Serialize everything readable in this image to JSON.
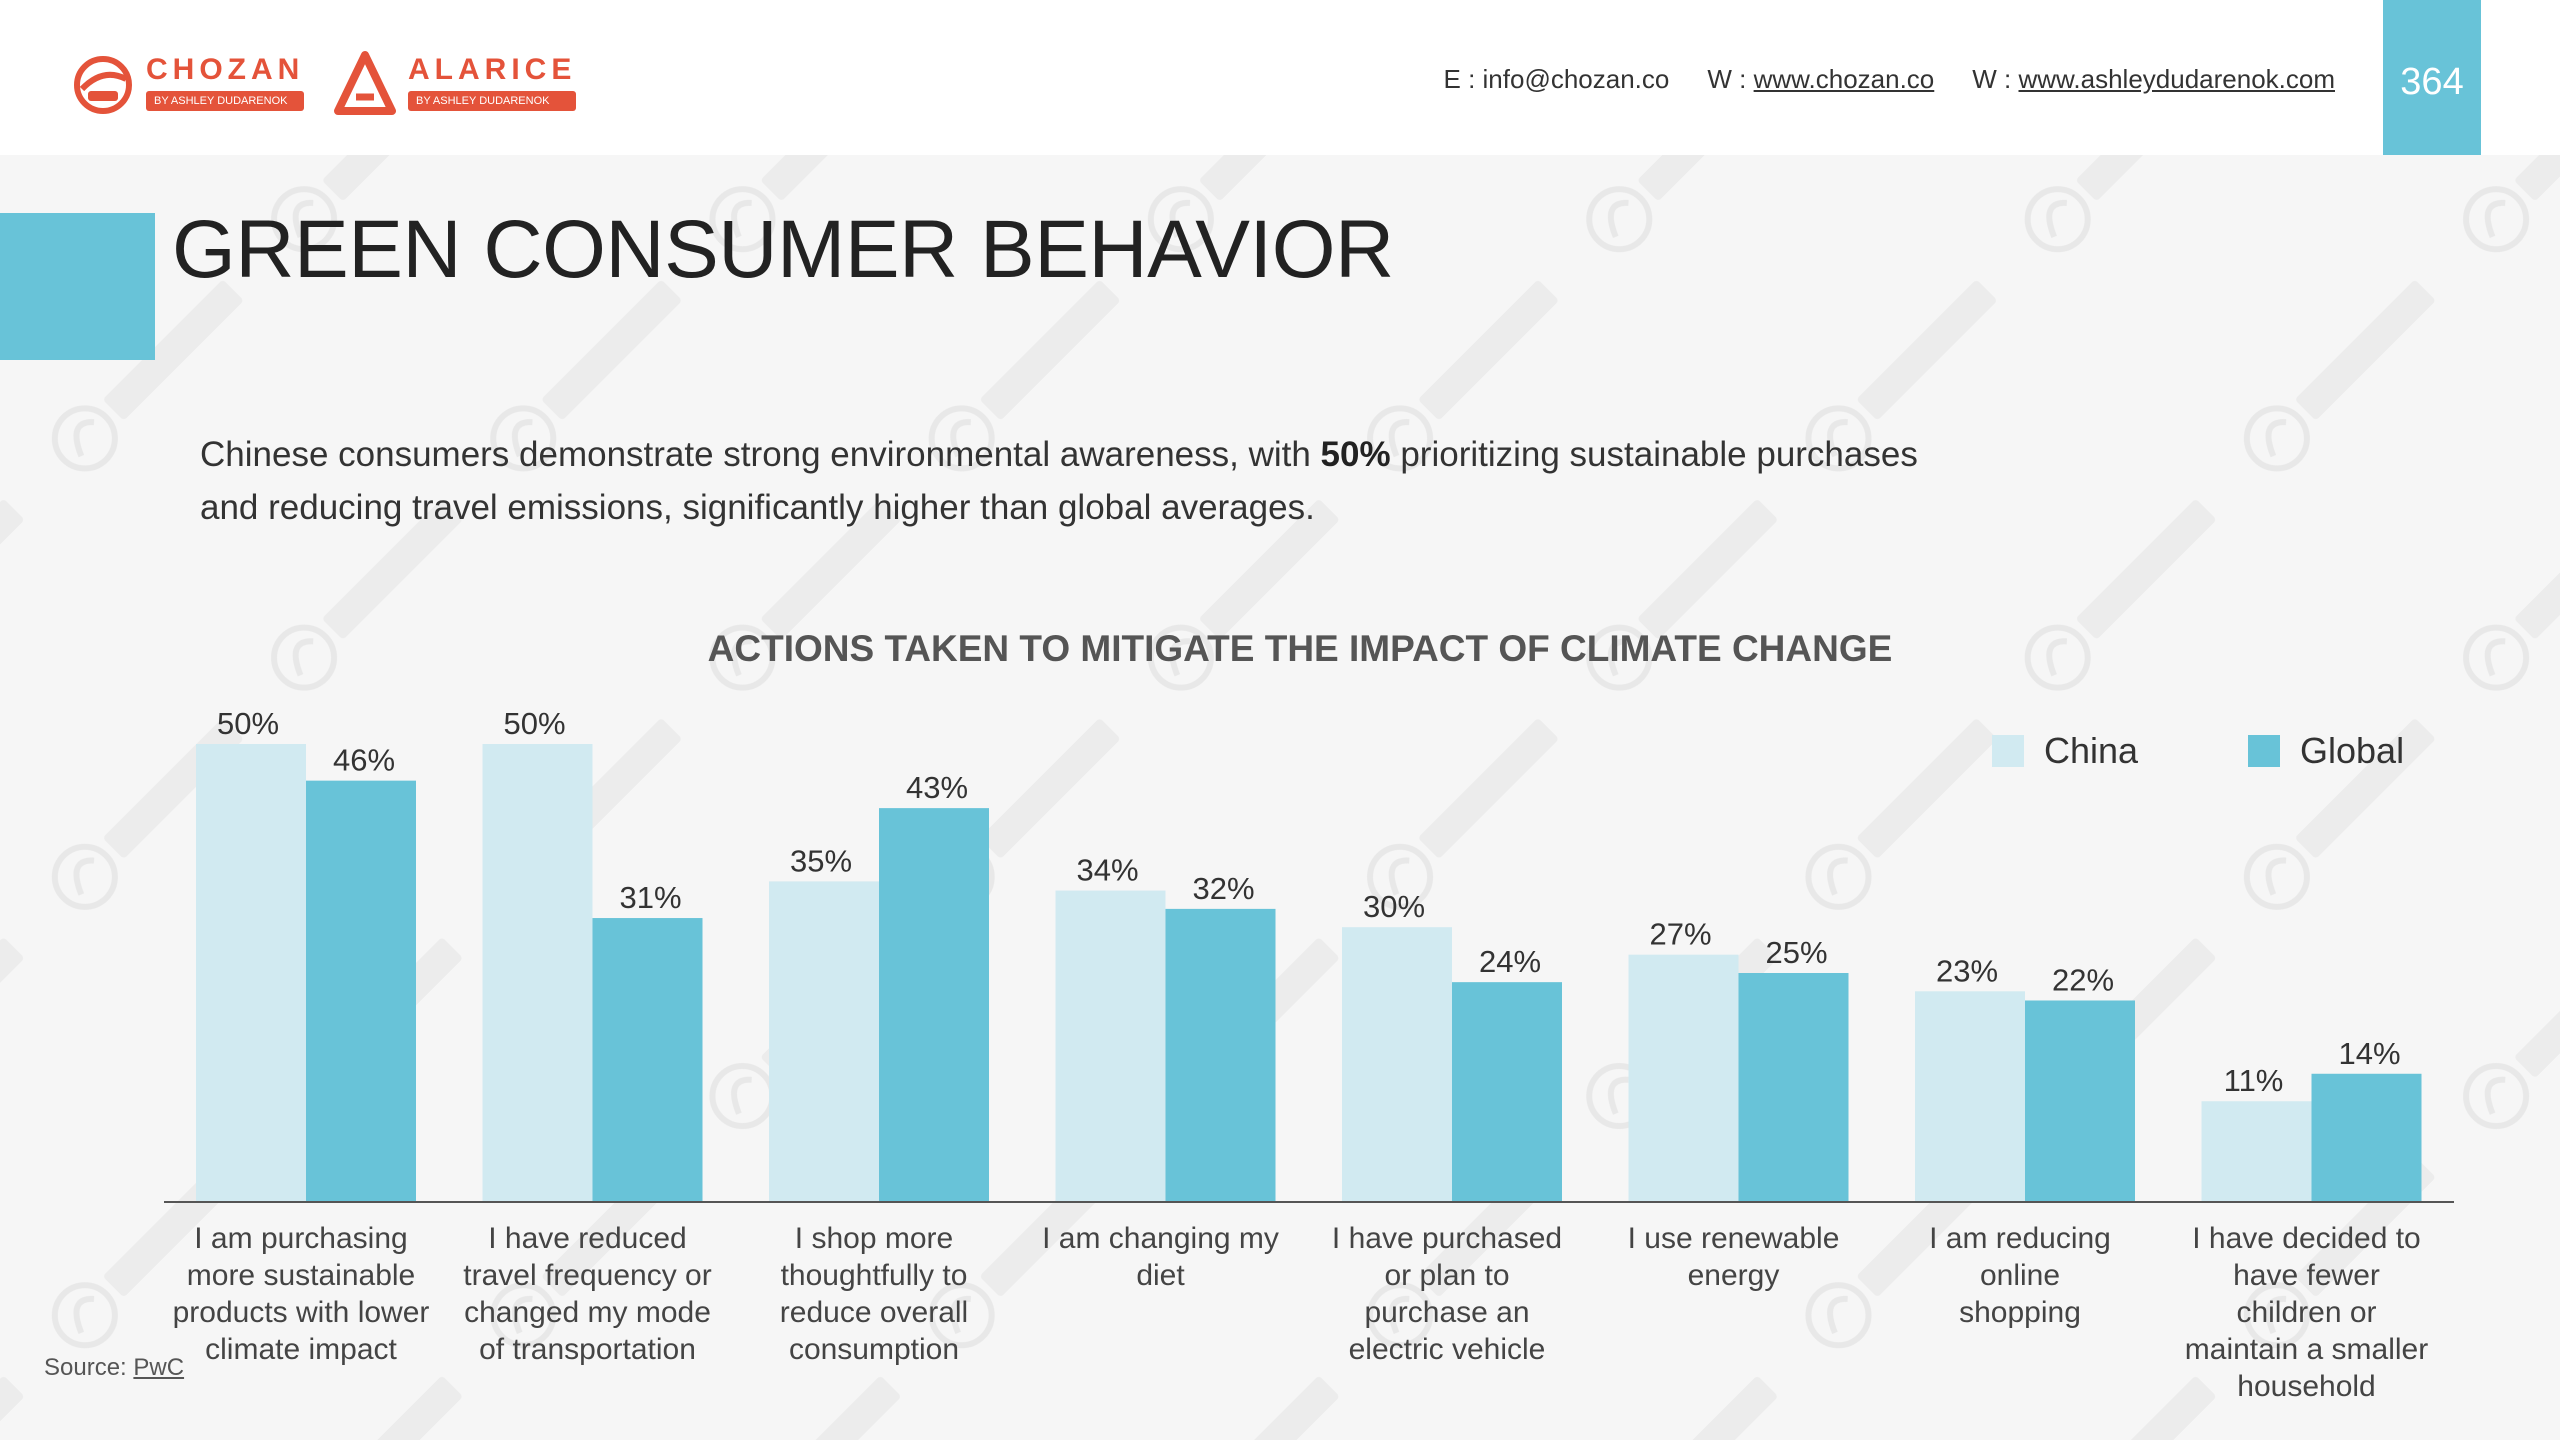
{
  "header": {
    "logo1": {
      "name": "CHOZAN",
      "sub": "BY ASHLEY DUDARENOK"
    },
    "logo2": {
      "name": "ALARICE",
      "sub": "BY ASHLEY DUDARENOK"
    },
    "email_label": "E :",
    "email": "info@chozan.co",
    "web1_label": "W :",
    "web1": "www.chozan.co",
    "web2_label": "W :",
    "web2": "www.ashleydudarenok.com",
    "page_number": "364"
  },
  "title": "GREEN CONSUMER BEHAVIOR",
  "intro": {
    "before": "Chinese consumers demonstrate strong environmental awareness, with ",
    "highlight": "50%",
    "after": " prioritizing sustainable purchases and reducing travel emissions, significantly higher than global averages."
  },
  "source": {
    "label": "Source:",
    "link": "PwC"
  },
  "colors": {
    "china": "#d1eaf1",
    "global": "#68c3d8",
    "accent": "#68c3d8",
    "brand": "#e4533a"
  },
  "chart_data": {
    "type": "bar",
    "title": "ACTIONS TAKEN TO MITIGATE THE IMPACT OF CLIMATE CHANGE",
    "categories": [
      "I am purchasing more sustainable products with lower climate impact",
      "I have reduced travel frequency or changed my mode of transportation",
      "I shop more thoughtfully to reduce overall consumption",
      "I am changing my diet",
      "I have purchased or plan to purchase an electric vehicle",
      "I use renewable energy",
      "I am reducing online shopping",
      "I have decided to have fewer children or maintain a smaller household"
    ],
    "category_lines": [
      [
        "I am purchasing",
        "more sustainable",
        "products with lower",
        "climate impact"
      ],
      [
        "I have reduced",
        "travel frequency or",
        "changed my mode",
        "of transportation"
      ],
      [
        "I shop more",
        "thoughtfully to",
        "reduce overall",
        "consumption"
      ],
      [
        "I am changing my",
        "diet"
      ],
      [
        "I have purchased",
        "or plan to",
        "purchase an",
        "electric vehicle"
      ],
      [
        "I use renewable",
        "energy"
      ],
      [
        "I am reducing",
        "online",
        "shopping"
      ],
      [
        "I have decided to",
        "have fewer",
        "children or",
        "maintain a smaller",
        "household"
      ]
    ],
    "series": [
      {
        "name": "China",
        "values": [
          50,
          50,
          35,
          34,
          30,
          27,
          23,
          11
        ],
        "labels": [
          "50%",
          "50%",
          "35%",
          "34%",
          "30%",
          "27%",
          "23%",
          "11%"
        ]
      },
      {
        "name": "Global",
        "values": [
          46,
          31,
          43,
          32,
          24,
          25,
          22,
          14
        ],
        "labels": [
          "46%",
          "31%",
          "43%",
          "32%",
          "24%",
          "25%",
          "22%",
          "14%"
        ]
      }
    ],
    "ylim": [
      0,
      50
    ],
    "legend": "top-right",
    "grid": false
  }
}
